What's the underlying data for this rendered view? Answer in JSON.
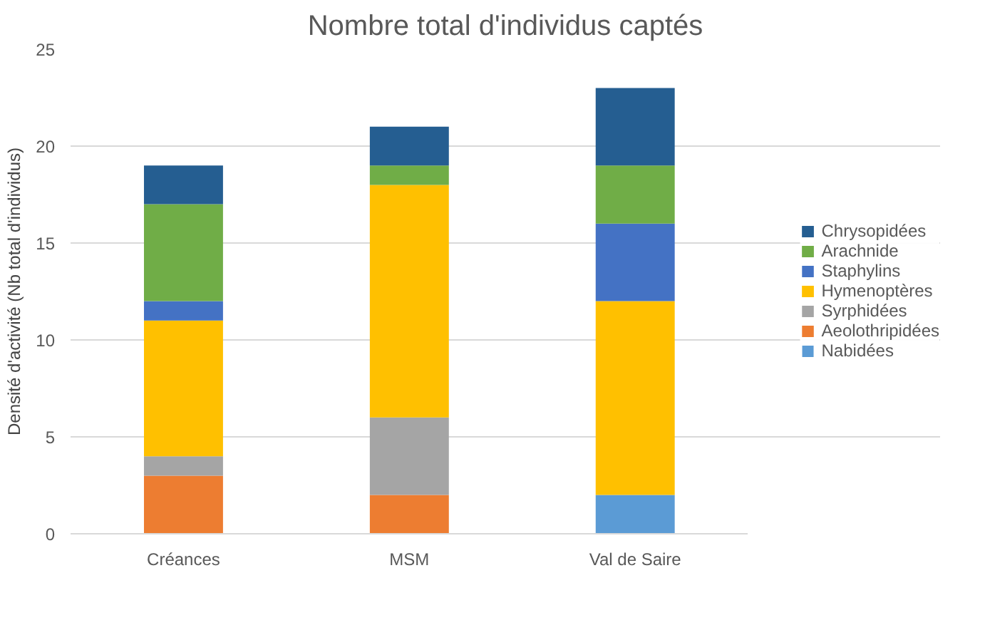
{
  "chart_data": {
    "type": "bar",
    "title": "Nombre total d'individus captés",
    "ylabel": "Densité d'activité (Nb total d'individus)",
    "categories": [
      "Créances",
      "MSM",
      "Val de Saire"
    ],
    "stacked": true,
    "ylim": [
      0,
      25
    ],
    "yticks": [
      0,
      5,
      10,
      15,
      20,
      25
    ],
    "grid": "y",
    "legend": "right",
    "series": [
      {
        "name": "Nabidées",
        "color": "#5b9bd5",
        "values": [
          0,
          0,
          2
        ]
      },
      {
        "name": "Aeolothripidées",
        "color": "#ed7d31",
        "values": [
          3,
          2,
          0
        ]
      },
      {
        "name": "Syrphidées",
        "color": "#a5a5a5",
        "values": [
          1,
          4,
          0
        ]
      },
      {
        "name": "Hymenoptères",
        "color": "#ffc000",
        "values": [
          7,
          12,
          10
        ]
      },
      {
        "name": "Staphylins",
        "color": "#4472c4",
        "values": [
          1,
          0,
          4
        ]
      },
      {
        "name": "Arachnide",
        "color": "#70ad47",
        "values": [
          5,
          1,
          3
        ]
      },
      {
        "name": "Chrysopidées",
        "color": "#255e91",
        "values": [
          2,
          2,
          4
        ]
      }
    ]
  }
}
